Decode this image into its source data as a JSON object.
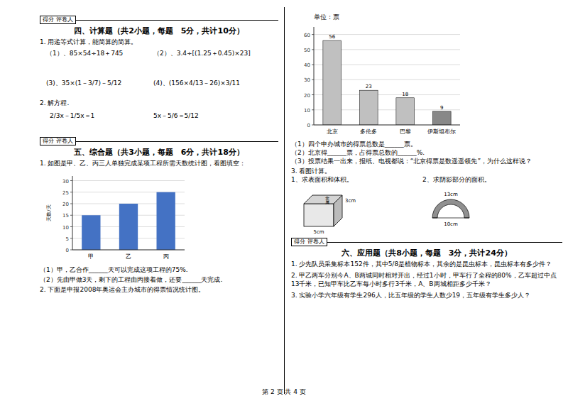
{
  "chart_data": [
    {
      "type": "bar",
      "categories": [
        "甲",
        "乙",
        "丙"
      ],
      "values": [
        15,
        20,
        25
      ],
      "color": "#4472c4",
      "ylabel": "天数/天",
      "ylim": [
        0,
        32
      ],
      "yticks": [
        0,
        5,
        10,
        15,
        20,
        25,
        30
      ],
      "grid": true,
      "annotations": [
        "得分  评卷人",
        "四、计算题（共2小题，每题　5分，共计10分）",
        "1. 用递等式计算，能简算的简算。",
        "（1）、85×54÷18＋745",
        "（2）、3.4÷[(1.25＋0.45)×23]",
        "(3)、35×(1－3/7)－5/12",
        "(4)、(156×4/13－26)×3/11",
        "2. 解方程.",
        "2/3x－1/5x＝1",
        "5x－5/6＝5/12",
        "得分  评卷人",
        "五、综合题（共3小题，每题　6分，共计18分）",
        "1. 如图是甲、乙、丙三人单独完成某项工程所需天数统计图，看图填空：",
        "（1）甲，乙合作______天可以完成这项工程的75%.",
        "（2）先由甲做3天，剩下的工程由丙接着做，还要______天完成.",
        "2. 下面是申报2008年奥运会主办城市的得票情况统计图。",
        "第 2 页 共 4 页"
      ]
    },
    {
      "type": "bar",
      "title": "单位：票",
      "categories": [
        "北京",
        "多伦多",
        "巴黎",
        "伊斯坦布尔"
      ],
      "values": [
        56,
        23,
        18,
        9
      ],
      "colors": [
        "#c0c0c0",
        "#c0c0c0",
        "#c0c0c0",
        "#888888"
      ],
      "ylim": [
        0,
        65
      ],
      "yticks": [
        0,
        10,
        20,
        30,
        40,
        50,
        60
      ],
      "grid": true,
      "data_labels": true,
      "annotations": [
        "（1）四个申办城市的得票总数是______票。",
        "（2）北京得______票，占得票总数的______%.",
        "（3）投票结果一出来，报纸、电视都说：“北京得票是数遥遥领先”，为什么这样说？",
        "3. 看图计算。",
        "1、求表面积和体积。",
        "2、求阴影部分的面积。",
        "金",
        "属",
        "5cm",
        "3cm",
        "13cm",
        "10cm",
        "得分  评卷人",
        "六、应用题（共8小题，每题　3分，共计24分）",
        "1. 少先队员采集标本152件，其中5/8是植物标本，其余的是昆虫标本，昆虫标本有多少件？",
        "2. 甲乙两车分别今A、B两城同时相对开出，经过1小时，甲车行了全程的80%，乙车超过中点13千米，已知甲车比乙车每小时多行3千米，A、B两城相距多少千米？",
        "3. 实验小学六年级有学生296人，比五年级的学生人数少19，五年级有学生多少人？"
      ]
    }
  ]
}
